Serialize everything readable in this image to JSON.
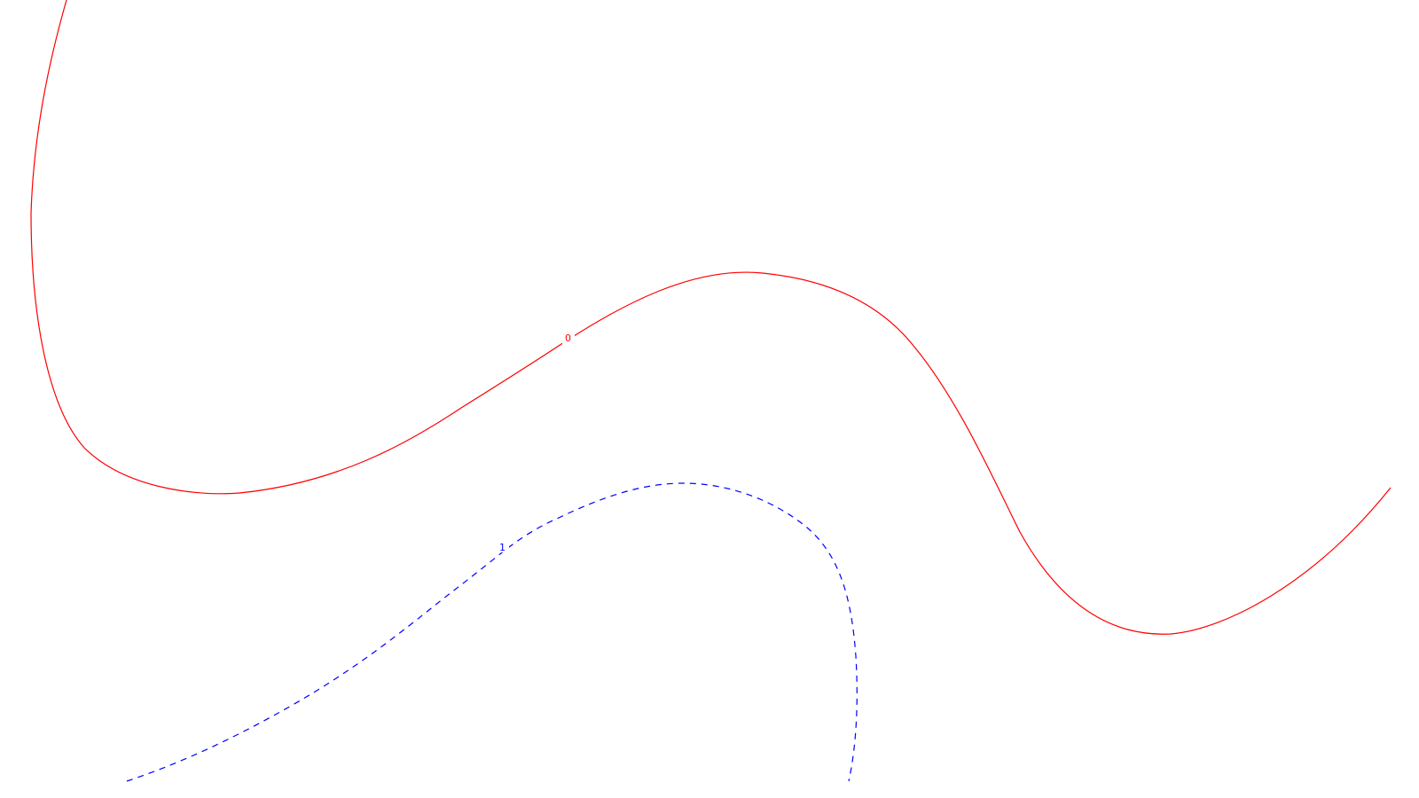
{
  "background_color": "#ffffff",
  "contours": [
    {
      "level_label": "0",
      "color": "#ff0000",
      "line_style": "solid"
    },
    {
      "level_label": "1",
      "color": "#0000ff",
      "line_style": "dashed"
    }
  ]
}
